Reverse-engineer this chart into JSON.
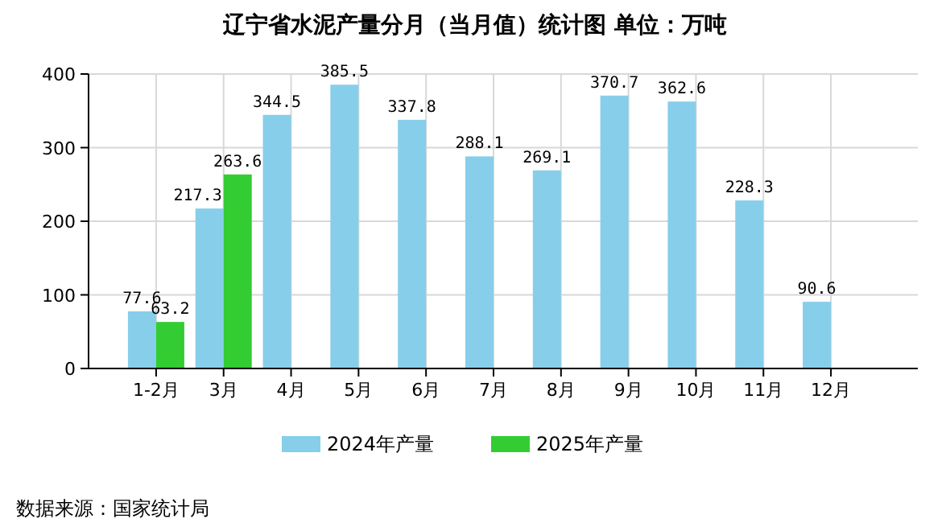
{
  "chart_data": {
    "type": "bar",
    "title": "辽宁省水泥产量分月（当月值）统计图 单位：万吨",
    "categories": [
      "1-2月",
      "3月",
      "4月",
      "5月",
      "6月",
      "7月",
      "8月",
      "9月",
      "10月",
      "11月",
      "12月"
    ],
    "series": [
      {
        "name": "2024年产量",
        "color": "#87ceeb",
        "values": [
          77.6,
          217.3,
          344.5,
          385.5,
          337.8,
          288.1,
          269.1,
          370.7,
          362.6,
          228.3,
          90.6
        ]
      },
      {
        "name": "2025年产量",
        "color": "#33cc33",
        "values": [
          63.2,
          263.6,
          null,
          null,
          null,
          null,
          null,
          null,
          null,
          null,
          null
        ]
      }
    ],
    "ylim": [
      0,
      400
    ],
    "yticks": [
      0,
      100,
      200,
      300,
      400
    ],
    "grid": true,
    "legend": "bottom",
    "data_labels": true,
    "annotations": [
      "数据来源：国家统计局"
    ]
  }
}
